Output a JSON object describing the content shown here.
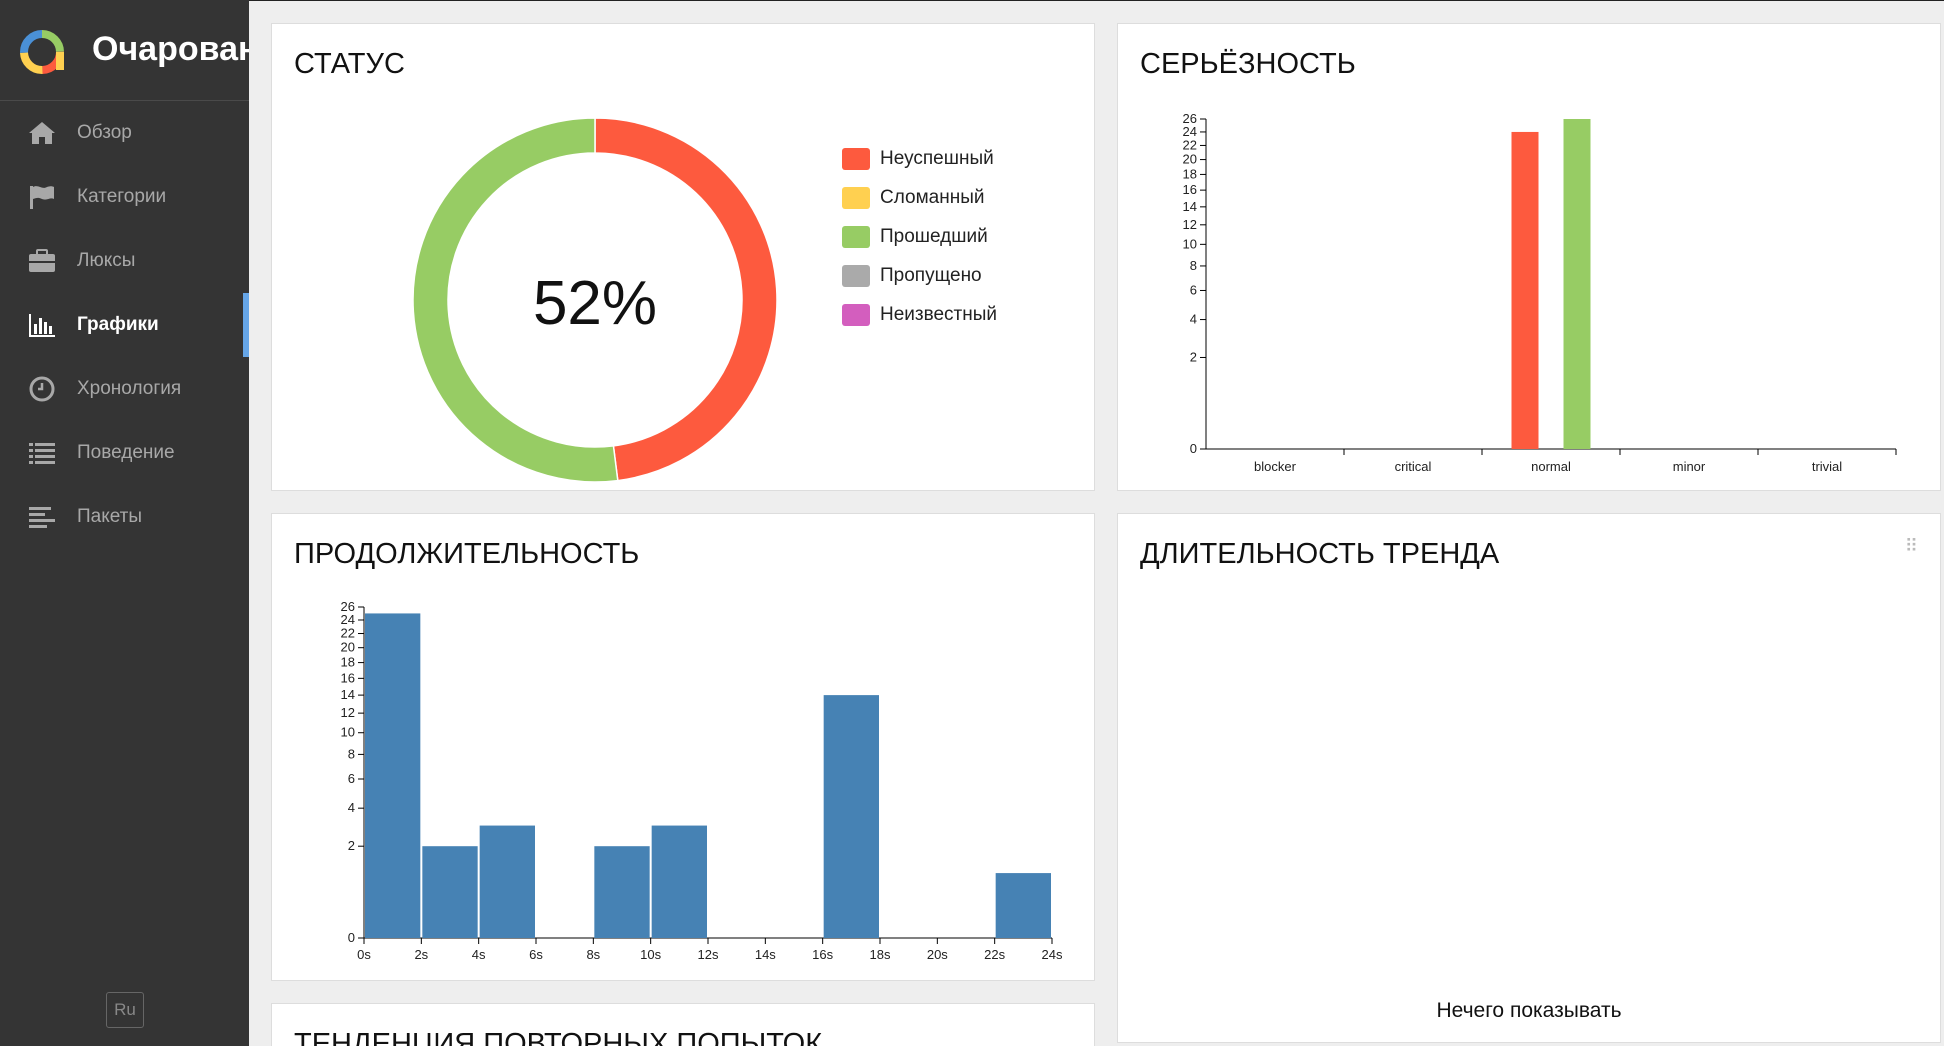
{
  "app": {
    "title": "Очарован"
  },
  "nav": [
    {
      "label": "Обзор",
      "icon": "home-icon",
      "active": false
    },
    {
      "label": "Категории",
      "icon": "flag-icon",
      "active": false
    },
    {
      "label": "Люксы",
      "icon": "briefcase-icon",
      "active": false
    },
    {
      "label": "Графики",
      "icon": "bar-chart-icon",
      "active": true
    },
    {
      "label": "Хронология",
      "icon": "clock-icon",
      "active": false
    },
    {
      "label": "Поведение",
      "icon": "list-icon",
      "active": false
    },
    {
      "label": "Пакеты",
      "icon": "align-left-icon",
      "active": false
    }
  ],
  "language": "Ru",
  "status": {
    "title": "СТАТУС",
    "percent": "52%",
    "legend": [
      {
        "label": "Неуспешный",
        "color": "#fd5a3e"
      },
      {
        "label": "Сломанный",
        "color": "#ffd050"
      },
      {
        "label": "Прошедший",
        "color": "#97cc64"
      },
      {
        "label": "Пропущено",
        "color": "#aaaaaa"
      },
      {
        "label": "Неизвестный",
        "color": "#d35ebe"
      }
    ]
  },
  "severity": {
    "title": "СЕРЬЁЗНОСТЬ"
  },
  "duration": {
    "title": "ПРОДОЛЖИТЕЛЬНОСТЬ"
  },
  "trend": {
    "title": "ДЛИТЕЛЬНОСТЬ ТРЕНДА",
    "empty_message": "Нечего показывать"
  },
  "retries": {
    "title": "ТЕНДЕНЦИЯ ПОВТОРНЫХ ПОПЫТОК"
  },
  "chart_data": [
    {
      "type": "pie",
      "title": "СТАТУС",
      "categories": [
        "Неуспешный",
        "Сломанный",
        "Прошедший",
        "Пропущено",
        "Неизвестный"
      ],
      "values": [
        24,
        0,
        26,
        0,
        0
      ],
      "colors": [
        "#fd5a3e",
        "#ffd050",
        "#97cc64",
        "#aaaaaa",
        "#d35ebe"
      ],
      "center_label": "52%"
    },
    {
      "type": "bar",
      "title": "СЕРЬЁЗНОСТЬ",
      "scale": "sqrt",
      "categories": [
        "blocker",
        "critical",
        "normal",
        "minor",
        "trivial"
      ],
      "series": [
        {
          "name": "Неуспешный",
          "color": "#fd5a3e",
          "values": [
            0,
            0,
            24,
            0,
            0
          ]
        },
        {
          "name": "Прошедший",
          "color": "#97cc64",
          "values": [
            0,
            0,
            26,
            0,
            0
          ]
        }
      ],
      "yticks": [
        0,
        2,
        4,
        6,
        8,
        10,
        12,
        14,
        16,
        18,
        20,
        22,
        24,
        26
      ],
      "ylim": [
        0,
        26
      ]
    },
    {
      "type": "bar",
      "title": "ПРОДОЛЖИТЕЛЬНОСТЬ",
      "scale": "sqrt",
      "bins": [
        {
          "from": 0,
          "to": 2,
          "value": 25
        },
        {
          "from": 2,
          "to": 4,
          "value": 2
        },
        {
          "from": 4,
          "to": 6,
          "value": 3
        },
        {
          "from": 6,
          "to": 8,
          "value": 0
        },
        {
          "from": 8,
          "to": 10,
          "value": 2
        },
        {
          "from": 10,
          "to": 12,
          "value": 3
        },
        {
          "from": 12,
          "to": 14,
          "value": 0
        },
        {
          "from": 14,
          "to": 16,
          "value": 0
        },
        {
          "from": 16,
          "to": 18,
          "value": 14
        },
        {
          "from": 18,
          "to": 20,
          "value": 0
        },
        {
          "from": 20,
          "to": 22,
          "value": 0
        },
        {
          "from": 22,
          "to": 24,
          "value": 1
        }
      ],
      "xticks": [
        "0s",
        "2s",
        "4s",
        "6s",
        "8s",
        "10s",
        "12s",
        "14s",
        "16s",
        "18s",
        "20s",
        "22s",
        "24s"
      ],
      "yticks": [
        0,
        2,
        4,
        6,
        8,
        10,
        12,
        14,
        16,
        18,
        20,
        22,
        24,
        26
      ],
      "ylim": [
        0,
        26
      ],
      "color": "#4682b4"
    }
  ]
}
